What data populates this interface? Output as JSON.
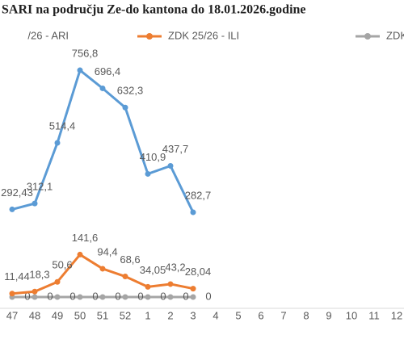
{
  "chart_data": {
    "type": "line",
    "title": "SARI na području Ze-do kantona do 18.01.2026.godine",
    "categories": [
      "47",
      "48",
      "49",
      "50",
      "51",
      "52",
      "1",
      "2",
      "3",
      "4",
      "5",
      "6",
      "7",
      "8",
      "9",
      "10",
      "11",
      "12"
    ],
    "ylim": [
      0,
      800
    ],
    "series": [
      {
        "name": "/26 - ARI",
        "color": "#5b9bd5",
        "values": [
          292.43,
          312.1,
          514.4,
          756.8,
          696.4,
          632.3,
          410.9,
          437.7,
          282.7,
          null,
          null,
          null,
          null,
          null,
          null,
          null,
          null,
          null
        ],
        "value_labels": [
          "292,43",
          "312,1",
          "514,4",
          "756,8",
          "696,4",
          "632,3",
          "410,9",
          "437,7",
          "282,7",
          null,
          null,
          null,
          null,
          null,
          null,
          null,
          null,
          null
        ]
      },
      {
        "name": "ZDK 25/26 - ILI",
        "color": "#ed7d31",
        "values": [
          11.44,
          18.3,
          50.6,
          141.6,
          94.4,
          68.6,
          34.05,
          43.2,
          28.04,
          null,
          null,
          null,
          null,
          null,
          null,
          null,
          null,
          null
        ],
        "value_labels": [
          "11,44",
          "18,3",
          "50,6",
          "141,6",
          "94,4",
          "68,6",
          "34,05",
          "43,2",
          "28,04",
          null,
          null,
          null,
          null,
          null,
          null,
          null,
          null,
          null
        ]
      },
      {
        "name": "ZDK",
        "color": "#a5a5a5",
        "values": [
          0,
          0,
          0,
          0,
          0,
          0,
          0,
          0,
          0,
          null,
          null,
          null,
          null,
          null,
          null,
          null,
          null,
          null
        ]
      }
    ]
  }
}
